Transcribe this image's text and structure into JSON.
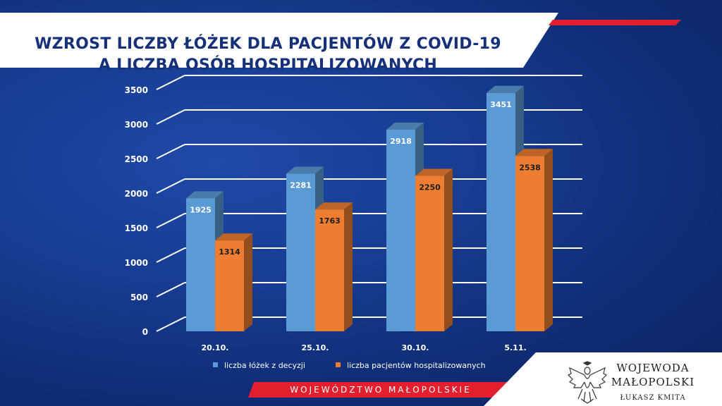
{
  "title": {
    "line1": "WZROST LICZBY ŁÓŻEK DLA PACJENTÓW Z COVID-19",
    "line2": "A LICZBA OSÓB HOSPITALIZOWANYCH"
  },
  "footer": {
    "region": "WOJEWÓDZTWO MAŁOPOLSKIE"
  },
  "logo": {
    "line1": "WOJEWODA",
    "line2": "MAŁOPOLSKI",
    "line3": "ŁUKASZ KMITA"
  },
  "colors": {
    "series1": "#5b9bd5",
    "series2": "#ed7d31",
    "title_text": "#16307a",
    "accent_red": "#e31e2d"
  },
  "chart_data": {
    "type": "bar",
    "categories": [
      "20.10.",
      "25.10.",
      "30.10.",
      "5.11."
    ],
    "series": [
      {
        "name": "liczba łóżek z decyzji",
        "values": [
          1925,
          2281,
          2918,
          3451
        ]
      },
      {
        "name": "liczba pacjentów hospitalizowanych",
        "values": [
          1314,
          1763,
          2250,
          2538
        ]
      }
    ],
    "yticks": [
      "0",
      "500",
      "1000",
      "1500",
      "2000",
      "2500",
      "3000",
      "3500"
    ],
    "ylim": [
      0,
      3500
    ],
    "grid": true,
    "legend": "bottom"
  }
}
